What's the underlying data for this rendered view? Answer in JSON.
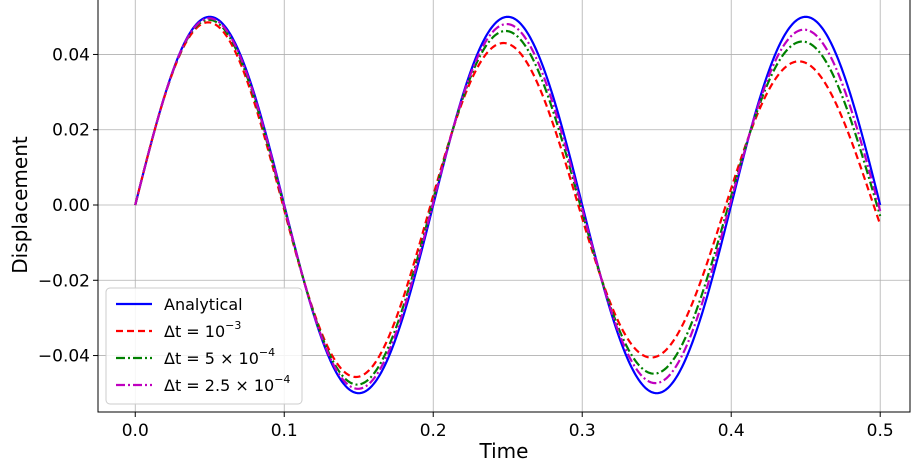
{
  "chart_data": {
    "type": "line",
    "title": "",
    "xlabel": "Time",
    "ylabel": "Displacement",
    "xlim": [
      -0.025,
      0.52
    ],
    "ylim": [
      -0.055,
      0.055
    ],
    "xticks": [
      0.0,
      0.1,
      0.2,
      0.3,
      0.4,
      0.5
    ],
    "xtick_labels": [
      "0.0",
      "0.1",
      "0.2",
      "0.3",
      "0.4",
      "0.5"
    ],
    "yticks": [
      -0.04,
      -0.02,
      0.0,
      0.02,
      0.04
    ],
    "ytick_labels": [
      "−0.04",
      "−0.02",
      "0.00",
      "0.02",
      "0.04"
    ],
    "grid": true,
    "legend_position": "lower-left",
    "model": {
      "amplitude": 0.05,
      "frequency": 5,
      "t_end": 0.5
    },
    "series": [
      {
        "name": "Analytical",
        "label_parts": {
          "prefix": "Analytical",
          "sup": ""
        },
        "color": "#0000ff",
        "dash": "solid",
        "decay": 0.0,
        "phase_lead": 0.0,
        "samples": [
          {
            "x": 0.0,
            "y": 0.0
          },
          {
            "x": 0.05,
            "y": 0.05
          },
          {
            "x": 0.15,
            "y": -0.05
          },
          {
            "x": 0.25,
            "y": 0.05
          },
          {
            "x": 0.35,
            "y": -0.05
          },
          {
            "x": 0.45,
            "y": 0.05
          },
          {
            "x": 0.5,
            "y": 0.0
          }
        ]
      },
      {
        "name": "Δt = 10⁻³",
        "label_parts": {
          "prefix": "Δt = 10",
          "sup": "−3"
        },
        "color": "#ff0000",
        "dash": "dashed",
        "decay": 0.212,
        "phase_lead": 0.0045,
        "samples": [
          {
            "x": 0.0,
            "y": 0.0
          },
          {
            "x": 0.05,
            "y": 0.048
          },
          {
            "x": 0.15,
            "y": -0.046
          },
          {
            "x": 0.25,
            "y": 0.047
          },
          {
            "x": 0.35,
            "y": -0.0405
          },
          {
            "x": 0.45,
            "y": 0.0455
          },
          {
            "x": 0.5,
            "y": -0.0045
          }
        ]
      },
      {
        "name": "Δt = 5 × 10⁻⁴",
        "label_parts": {
          "prefix": "Δt = 5 × 10",
          "sup": "−4"
        },
        "color": "#008000",
        "dash": "dashdot",
        "decay": 0.11,
        "phase_lead": 0.0022,
        "samples": [
          {
            "x": 0.0,
            "y": 0.0
          },
          {
            "x": 0.05,
            "y": 0.049
          },
          {
            "x": 0.15,
            "y": -0.0475
          },
          {
            "x": 0.25,
            "y": 0.049
          },
          {
            "x": 0.35,
            "y": -0.0435
          },
          {
            "x": 0.45,
            "y": 0.048
          },
          {
            "x": 0.5,
            "y": -0.0015
          }
        ]
      },
      {
        "name": "Δt = 2.5 × 10⁻⁴",
        "label_parts": {
          "prefix": "Δt = 2.5 × 10",
          "sup": "−4"
        },
        "color": "#bf00bf",
        "dash": "dashdot",
        "decay": 0.055,
        "phase_lead": 0.0011,
        "samples": [
          {
            "x": 0.0,
            "y": 0.0
          },
          {
            "x": 0.05,
            "y": 0.0495
          },
          {
            "x": 0.15,
            "y": -0.0485
          },
          {
            "x": 0.25,
            "y": 0.0495
          },
          {
            "x": 0.35,
            "y": -0.0455
          },
          {
            "x": 0.45,
            "y": 0.049
          },
          {
            "x": 0.5,
            "y": -0.0005
          }
        ]
      }
    ]
  }
}
